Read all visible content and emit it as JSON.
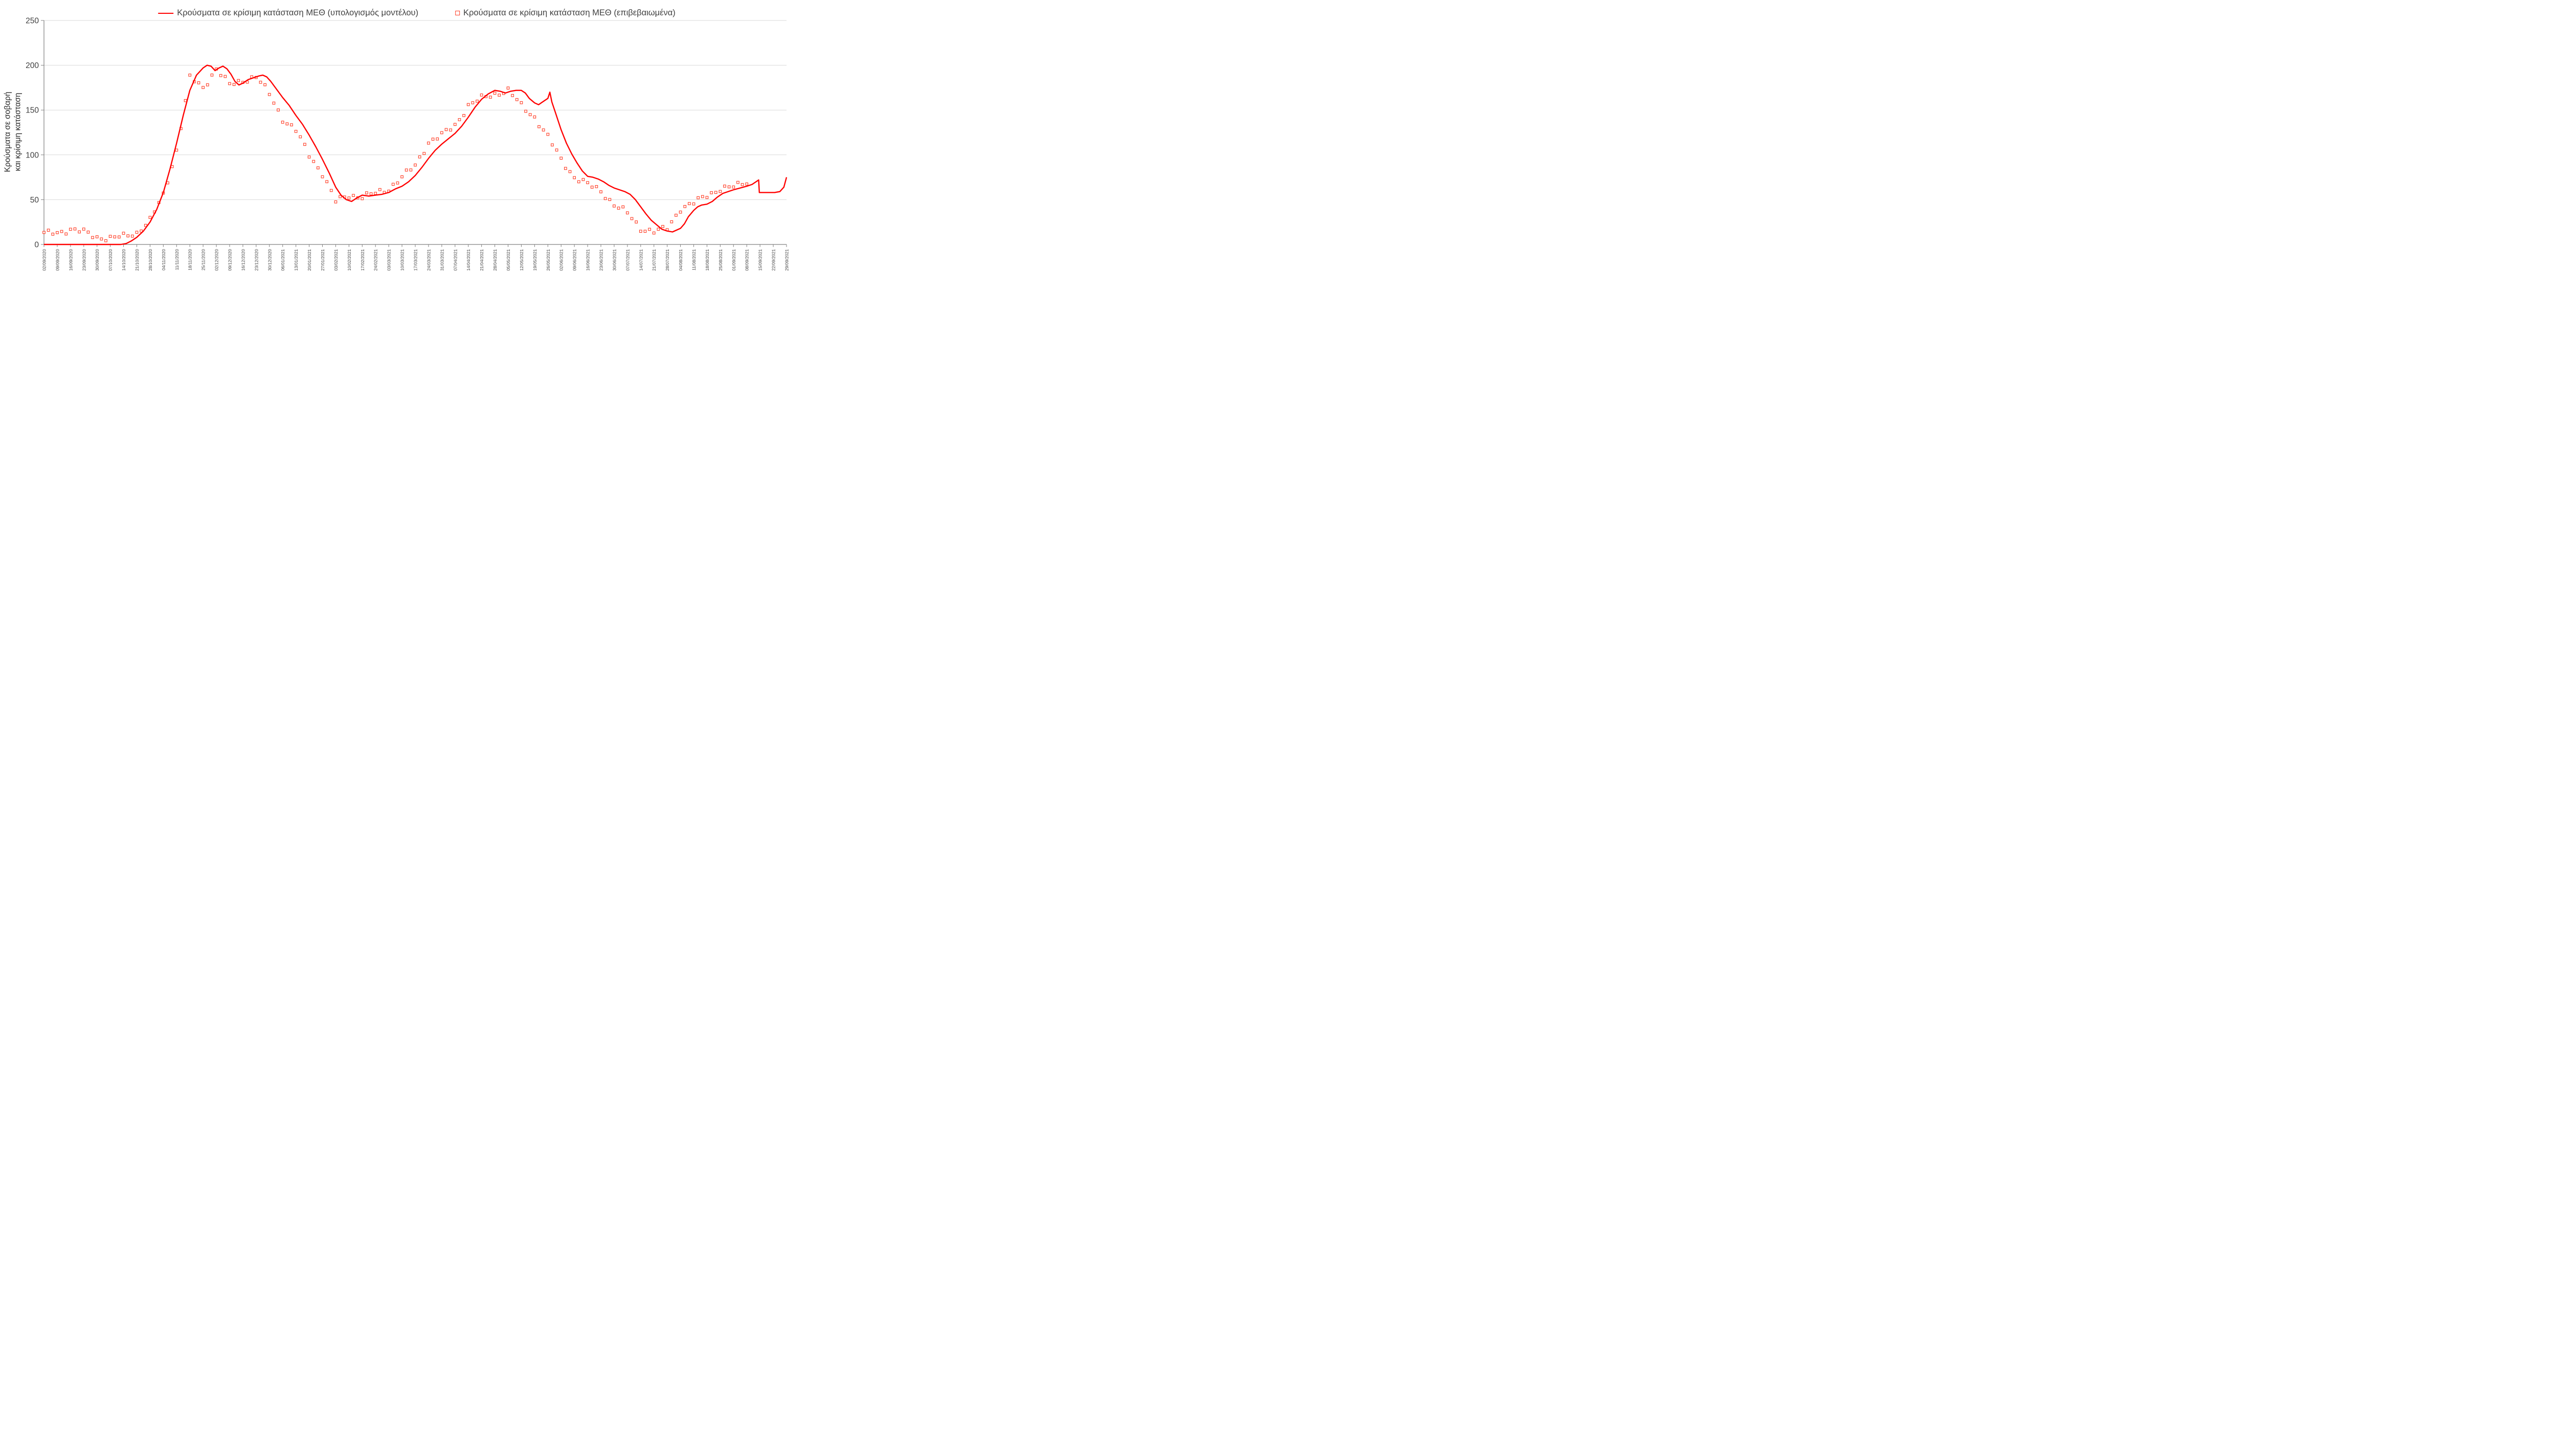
{
  "chart_data": {
    "type": "line",
    "title": "",
    "xlabel": "",
    "ylabel_lines": [
      "Κρούσματα σε σοβαρή",
      "και κρίσιμη κατάσταση"
    ],
    "ylim": [
      0,
      250
    ],
    "yticks": [
      0,
      50,
      100,
      150,
      200,
      250
    ],
    "grid": "horizontal",
    "legend_position": "top",
    "legend": [
      {
        "label": "Κρούσματα σε κρίσιμη κατάσταση ΜΕΘ (υπολογισμός μοντέλου)",
        "marker": "line"
      },
      {
        "label": "Κρούσματα σε κρίσιμη κατάσταση ΜΕΘ (επιβεβαιωμένα)",
        "marker": "open-square"
      }
    ],
    "colors": {
      "line": "#FF0000",
      "marker": "#FF3B23",
      "grid": "#D9D9D9",
      "axis": "#808080",
      "text": "#404040"
    },
    "categories": [
      "02/09/2020",
      "09/09/2020",
      "16/09/2020",
      "23/09/2020",
      "30/09/2020",
      "07/10/2020",
      "14/10/2020",
      "21/10/2020",
      "28/10/2020",
      "04/11/2020",
      "11/11/2020",
      "18/11/2020",
      "25/11/2020",
      "02/12/2020",
      "09/12/2020",
      "16/12/2020",
      "23/12/2020",
      "30/12/2020",
      "06/01/2021",
      "13/01/2021",
      "20/01/2021",
      "27/01/2021",
      "03/02/2021",
      "10/02/2021",
      "17/02/2021",
      "24/02/2021",
      "03/03/2021",
      "10/03/2021",
      "17/03/2021",
      "24/03/2021",
      "31/03/2021",
      "07/04/2021",
      "14/04/2021",
      "21/04/2021",
      "28/04/2021",
      "05/05/2021",
      "12/05/2021",
      "19/05/2021",
      "26/05/2021",
      "02/06/2021",
      "09/06/2021",
      "16/06/2021",
      "23/06/2021",
      "30/06/2021",
      "07/07/2021",
      "14/07/2021",
      "21/07/2021",
      "28/07/2021",
      "04/08/2021",
      "11/08/2021",
      "18/08/2021",
      "25/08/2021",
      "01/09/2021",
      "08/09/2021",
      "15/09/2021",
      "22/09/2021",
      "29/09/2021"
    ],
    "series": [
      {
        "name": "model",
        "points": [
          [
            0,
            0
          ],
          [
            5.8,
            0
          ],
          [
            6.2,
            1
          ],
          [
            6.6,
            4
          ],
          [
            7,
            8
          ],
          [
            7.5,
            15
          ],
          [
            8,
            25
          ],
          [
            8.5,
            39
          ],
          [
            9,
            58
          ],
          [
            9.5,
            84
          ],
          [
            10,
            113
          ],
          [
            10.5,
            144
          ],
          [
            11,
            172
          ],
          [
            11.5,
            189
          ],
          [
            12,
            197
          ],
          [
            12.3,
            200
          ],
          [
            12.6,
            199
          ],
          [
            12.9,
            194
          ],
          [
            13.2,
            197
          ],
          [
            13.5,
            199
          ],
          [
            13.8,
            196
          ],
          [
            14.1,
            190
          ],
          [
            14.4,
            182
          ],
          [
            14.7,
            178
          ],
          [
            15,
            180
          ],
          [
            15.4,
            184
          ],
          [
            15.8,
            186
          ],
          [
            16.2,
            188
          ],
          [
            16.5,
            189
          ],
          [
            16.8,
            187
          ],
          [
            17.1,
            182
          ],
          [
            17.5,
            174
          ],
          [
            18,
            164
          ],
          [
            18.5,
            155
          ],
          [
            19,
            144
          ],
          [
            19.5,
            134
          ],
          [
            20,
            122
          ],
          [
            20.5,
            109
          ],
          [
            21,
            95
          ],
          [
            21.5,
            80
          ],
          [
            22,
            64
          ],
          [
            22.4,
            55
          ],
          [
            22.8,
            50
          ],
          [
            23.2,
            48
          ],
          [
            23.6,
            52
          ],
          [
            24,
            55
          ],
          [
            24.5,
            54
          ],
          [
            25,
            55
          ],
          [
            25.5,
            56
          ],
          [
            26,
            58
          ],
          [
            26.5,
            62
          ],
          [
            27,
            65
          ],
          [
            27.5,
            70
          ],
          [
            28,
            77
          ],
          [
            28.5,
            86
          ],
          [
            29,
            96
          ],
          [
            29.5,
            105
          ],
          [
            30,
            112
          ],
          [
            30.5,
            118
          ],
          [
            31,
            124
          ],
          [
            31.5,
            132
          ],
          [
            32,
            142
          ],
          [
            32.5,
            153
          ],
          [
            33,
            162
          ],
          [
            33.5,
            168
          ],
          [
            34,
            172
          ],
          [
            34.4,
            171
          ],
          [
            34.8,
            169
          ],
          [
            35.2,
            171
          ],
          [
            35.6,
            172
          ],
          [
            36,
            172
          ],
          [
            36.3,
            169
          ],
          [
            36.6,
            163
          ],
          [
            37,
            158
          ],
          [
            37.3,
            156
          ],
          [
            37.6,
            159
          ],
          [
            38,
            163
          ],
          [
            38.15,
            170
          ],
          [
            38.3,
            159
          ],
          [
            38.6,
            146
          ],
          [
            39,
            128
          ],
          [
            39.4,
            113
          ],
          [
            39.8,
            101
          ],
          [
            40.2,
            91
          ],
          [
            40.6,
            82
          ],
          [
            41,
            76
          ],
          [
            41.4,
            75
          ],
          [
            41.8,
            73
          ],
          [
            42.2,
            70
          ],
          [
            42.6,
            66
          ],
          [
            43,
            63
          ],
          [
            43.4,
            61
          ],
          [
            43.8,
            59
          ],
          [
            44.2,
            56
          ],
          [
            44.6,
            50
          ],
          [
            45,
            42
          ],
          [
            45.4,
            34
          ],
          [
            45.8,
            27
          ],
          [
            46.2,
            22
          ],
          [
            46.6,
            17
          ],
          [
            47,
            15
          ],
          [
            47.4,
            14
          ],
          [
            47.7,
            16
          ],
          [
            48,
            18
          ],
          [
            48.3,
            23
          ],
          [
            48.6,
            31
          ],
          [
            49,
            38
          ],
          [
            49.3,
            42
          ],
          [
            49.6,
            44
          ],
          [
            50,
            45
          ],
          [
            50.4,
            48
          ],
          [
            50.8,
            53
          ],
          [
            51.2,
            57
          ],
          [
            51.6,
            59
          ],
          [
            52,
            61
          ],
          [
            52.5,
            63
          ],
          [
            53,
            65
          ],
          [
            53.4,
            67
          ],
          [
            53.7,
            70
          ],
          [
            53.9,
            72
          ],
          [
            53.95,
            58
          ],
          [
            54.3,
            58
          ],
          [
            54.7,
            58
          ],
          [
            55.1,
            58
          ],
          [
            55.5,
            59
          ],
          [
            55.8,
            64
          ],
          [
            56,
            75
          ]
        ]
      },
      {
        "name": "confirmed",
        "weekly_values": [
          12,
          13,
          17,
          14,
          8,
          7,
          9,
          13,
          27,
          55,
          105,
          186,
          175,
          196,
          178,
          183,
          187,
          168,
          140,
          127,
          100,
          79,
          48,
          55,
          53,
          57,
          62,
          75,
          88,
          114,
          122,
          133,
          155,
          163,
          168,
          172,
          155,
          142,
          120,
          95,
          75,
          67,
          60,
          44,
          35,
          18,
          14,
          18,
          40,
          46,
          55,
          62,
          64,
          70
        ]
      }
    ]
  }
}
